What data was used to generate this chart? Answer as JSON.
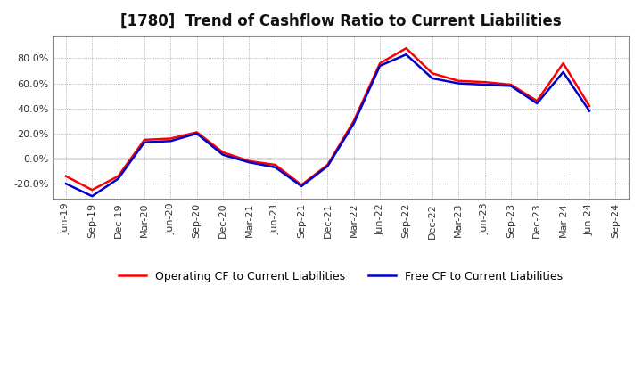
{
  "title": "[1780]  Trend of Cashflow Ratio to Current Liabilities",
  "x_labels": [
    "Jun-19",
    "Sep-19",
    "Dec-19",
    "Mar-20",
    "Jun-20",
    "Sep-20",
    "Dec-20",
    "Mar-21",
    "Jun-21",
    "Sep-21",
    "Dec-21",
    "Mar-22",
    "Jun-22",
    "Sep-22",
    "Dec-22",
    "Mar-23",
    "Jun-23",
    "Sep-23",
    "Dec-23",
    "Mar-24",
    "Jun-24",
    "Sep-24"
  ],
  "operating_cf": [
    -14.0,
    -25.0,
    -14.0,
    15.0,
    16.0,
    21.0,
    5.0,
    -2.0,
    -5.0,
    -21.0,
    -5.0,
    30.0,
    76.0,
    88.0,
    68.0,
    62.0,
    61.0,
    59.0,
    46.0,
    76.0,
    42.0,
    null
  ],
  "free_cf": [
    -20.0,
    -30.0,
    -16.0,
    13.0,
    14.0,
    20.0,
    3.0,
    -3.0,
    -7.0,
    -22.0,
    -6.0,
    28.0,
    74.0,
    83.0,
    64.0,
    60.0,
    59.0,
    58.0,
    44.0,
    69.0,
    38.0,
    null
  ],
  "operating_color": "#ff0000",
  "free_color": "#0000cc",
  "line_width": 1.8,
  "ylim": [
    -32,
    98
  ],
  "yticks": [
    -20.0,
    0.0,
    20.0,
    40.0,
    60.0,
    80.0
  ],
  "legend_operating": "Operating CF to Current Liabilities",
  "legend_free": "Free CF to Current Liabilities",
  "bg_color": "#ffffff",
  "plot_bg_color": "#ffffff",
  "grid_color": "#999999",
  "title_fontsize": 12,
  "tick_fontsize": 8,
  "legend_fontsize": 9
}
